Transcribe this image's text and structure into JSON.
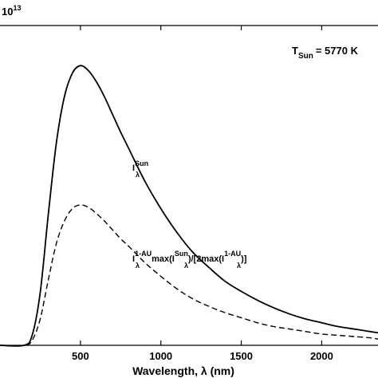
{
  "chart_data": {
    "type": "line",
    "title": "",
    "xlabel": "Wavelength, λ (nm)",
    "ylabel": "",
    "xlim": [
      0,
      2350
    ],
    "ylim": [
      0,
      2.55
    ],
    "y_multiplier_label": {
      "base": "10",
      "exponent": "13"
    },
    "xticks": [
      500,
      1000,
      1500,
      2000
    ],
    "tick_labels": [
      "500",
      "1000",
      "1500",
      "2000"
    ],
    "grid": false,
    "annotation_temperature": {
      "symbol": "T",
      "subscript": "Sun",
      "value": "= 5770 K"
    },
    "series": [
      {
        "style": "solid",
        "label": {
          "base": "I",
          "superscript": "Sun",
          "subscript": "λ"
        },
        "x": [
          150,
          200,
          250,
          300,
          350,
          400,
          450,
          500,
          550,
          600,
          650,
          700,
          750,
          800,
          900,
          1000,
          1100,
          1200,
          1300,
          1400,
          1500,
          1600,
          1700,
          1800,
          1900,
          2000,
          2100,
          2200,
          2300,
          2350
        ],
        "y": [
          0.0,
          0.08,
          0.42,
          1.04,
          1.61,
          1.98,
          2.17,
          2.23,
          2.19,
          2.1,
          1.98,
          1.84,
          1.7,
          1.57,
          1.31,
          1.09,
          0.9,
          0.74,
          0.62,
          0.51,
          0.43,
          0.36,
          0.3,
          0.25,
          0.21,
          0.18,
          0.15,
          0.13,
          0.11,
          0.1
        ]
      },
      {
        "style": "dashed",
        "label": {
          "parts": [
            "I",
            "1-AU",
            "max(I",
            "Sun",
            ")/[2max(I",
            "1-AU",
            ")]"
          ],
          "subscript": "λ"
        },
        "x": [
          150,
          200,
          250,
          300,
          350,
          400,
          450,
          500,
          550,
          600,
          650,
          700,
          750,
          800,
          900,
          1000,
          1100,
          1200,
          1300,
          1400,
          1500,
          1600,
          1700,
          1800,
          1900,
          2000,
          2100,
          2200,
          2300,
          2350
        ],
        "y": [
          0.0,
          0.04,
          0.21,
          0.52,
          0.81,
          0.99,
          1.09,
          1.12,
          1.1,
          1.05,
          0.99,
          0.92,
          0.85,
          0.79,
          0.66,
          0.55,
          0.45,
          0.37,
          0.31,
          0.26,
          0.22,
          0.18,
          0.15,
          0.13,
          0.11,
          0.09,
          0.08,
          0.07,
          0.06,
          0.05
        ]
      }
    ]
  }
}
